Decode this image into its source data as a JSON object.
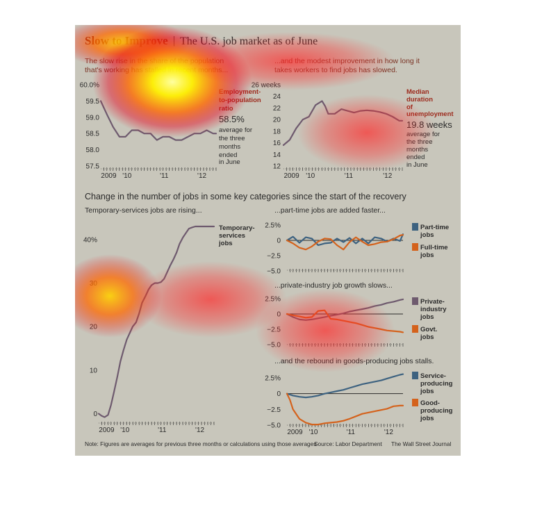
{
  "header": {
    "title_bold": "Slow to Improve",
    "separator": "|",
    "title_rest": "The U.S. job market as of June"
  },
  "panels_top": {
    "left_subtitle": [
      "The slow rise in the share of the population",
      "that's working has stalled in recent months..."
    ],
    "right_subtitle": [
      "...and the modest improvement in how long it",
      "takes workers to find jobs has slowed."
    ]
  },
  "section_title": "Change in the number of jobs in some key categories since the start of the recovery",
  "panels_bottom": {
    "left_subtitle": "Temporary-services jobs are rising...",
    "r1_subtitle": "...part-time jobs are added faster...",
    "r2_subtitle": "...private-industry job growth slows...",
    "r3_subtitle": "...and the rebound in goods-producing jobs stalls."
  },
  "footer": {
    "note": "Note: Figures are averages for previous three months or calculations using those averages",
    "source": "Source: Labor Department",
    "credit": "The Wall Street Journal"
  },
  "colors": {
    "background": "#c8c6bb",
    "purple": "#6e5a6e",
    "blue": "#3d6280",
    "orange": "#d4621c",
    "dark_red_text": "#9c2a1c",
    "text": "#2a2a2a"
  },
  "chart_data": [
    {
      "id": "emp",
      "type": "line",
      "title": "Employment-to-population ratio",
      "ylim": [
        57.5,
        60.0
      ],
      "yticks": [
        57.5,
        58.0,
        58.5,
        59.0,
        59.5,
        60.0
      ],
      "ytick_labels": [
        "57.5",
        "58.0",
        "58.5",
        "59.0",
        "59.5",
        "60.0%"
      ],
      "xlim": [
        2009.42,
        2012.5
      ],
      "xtick_labels": [
        "2009",
        "'10",
        "'11",
        "'12"
      ],
      "xtick_values": [
        2009.5,
        2010.0,
        2011.0,
        2012.0
      ],
      "series": [
        {
          "name": "Employment-to-population ratio",
          "color": "#6e5a6e",
          "x": [
            2009.42,
            2009.58,
            2009.75,
            2009.92,
            2010.08,
            2010.25,
            2010.42,
            2010.58,
            2010.75,
            2010.92,
            2011.08,
            2011.25,
            2011.42,
            2011.58,
            2011.75,
            2011.92,
            2012.08,
            2012.25,
            2012.42,
            2012.5
          ],
          "y": [
            59.5,
            59.1,
            58.7,
            58.4,
            58.4,
            58.6,
            58.6,
            58.5,
            58.5,
            58.3,
            58.4,
            58.4,
            58.3,
            58.3,
            58.4,
            58.5,
            58.5,
            58.6,
            58.5,
            58.5
          ]
        }
      ],
      "callout": {
        "label": "Employment-to-population ratio",
        "value": "58.5%",
        "desc": [
          "average for",
          "the three",
          "months",
          "ended",
          "in June"
        ]
      }
    },
    {
      "id": "dur",
      "type": "line",
      "title": "Median duration of unemployment",
      "ylim": [
        12,
        26
      ],
      "yticks": [
        12,
        14,
        16,
        18,
        20,
        22,
        24,
        26
      ],
      "ytick_labels": [
        "12",
        "14",
        "16",
        "18",
        "20",
        "22",
        "24",
        "26 weeks"
      ],
      "xlim": [
        2009.42,
        2012.5
      ],
      "xtick_labels": [
        "2009",
        "'10",
        "'11",
        "'12"
      ],
      "xtick_values": [
        2009.5,
        2010.0,
        2011.0,
        2012.0
      ],
      "series": [
        {
          "name": "Median duration of unemployment",
          "color": "#6e5a6e",
          "x": [
            2009.42,
            2009.58,
            2009.75,
            2009.92,
            2010.08,
            2010.25,
            2010.42,
            2010.5,
            2010.58,
            2010.75,
            2010.92,
            2011.08,
            2011.25,
            2011.42,
            2011.58,
            2011.75,
            2011.92,
            2012.08,
            2012.25,
            2012.42,
            2012.5
          ],
          "y": [
            15.6,
            16.5,
            18.5,
            20.0,
            20.5,
            22.5,
            23.2,
            22.3,
            21.0,
            21.0,
            21.8,
            21.5,
            21.2,
            21.5,
            21.6,
            21.5,
            21.3,
            21.0,
            20.5,
            19.8,
            19.8
          ]
        }
      ],
      "callout": {
        "label": "Median duration of unemployment",
        "value": "19.8 weeks",
        "desc": [
          "average for",
          "the three",
          "months",
          "ended",
          "in June"
        ]
      }
    },
    {
      "id": "temp",
      "type": "line",
      "title": "Temporary-services jobs",
      "ylim": [
        -2,
        43
      ],
      "yticks": [
        0,
        10,
        20,
        30,
        40
      ],
      "ytick_labels": [
        "0",
        "10",
        "20",
        "30",
        "40%"
      ],
      "xlim": [
        2009.42,
        2012.5
      ],
      "xtick_labels": [
        "2009",
        "'10",
        "'11",
        "'12"
      ],
      "xtick_values": [
        2009.5,
        2010.0,
        2011.0,
        2012.0
      ],
      "series": [
        {
          "name": "Temporary-services jobs",
          "color": "#6e5a6e",
          "x": [
            2009.42,
            2009.5,
            2009.58,
            2009.67,
            2009.75,
            2009.83,
            2009.92,
            2010.0,
            2010.08,
            2010.17,
            2010.25,
            2010.33,
            2010.42,
            2010.5,
            2010.58,
            2010.67,
            2010.75,
            2010.83,
            2010.92,
            2011.0,
            2011.08,
            2011.17,
            2011.25,
            2011.33,
            2011.42,
            2011.5,
            2011.58,
            2011.67,
            2011.75,
            2011.83,
            2011.92,
            2012.0,
            2012.08,
            2012.17,
            2012.25,
            2012.33,
            2012.42,
            2012.5
          ],
          "y": [
            0,
            -0.5,
            -0.8,
            -0.3,
            2,
            5,
            8.5,
            12,
            14.5,
            17,
            18.5,
            20,
            21,
            23,
            25.5,
            27,
            28.5,
            29.5,
            30,
            30,
            30.2,
            31,
            32.5,
            34,
            35.5,
            37,
            39,
            40.5,
            41.5,
            42.5,
            42.8,
            43,
            43,
            43,
            43,
            43,
            43,
            43
          ]
        }
      ],
      "legend": [
        "Temporary-",
        "services",
        "jobs"
      ]
    },
    {
      "id": "pt",
      "type": "line",
      "title": "",
      "ylim": [
        -5.0,
        2.5
      ],
      "yticks": [
        -5.0,
        -2.5,
        0,
        2.5
      ],
      "ytick_labels": [
        "−5.0",
        "−2.5",
        "0",
        "2.5%"
      ],
      "xlim": [
        2009.42,
        2012.5
      ],
      "series": [
        {
          "name": "Part-time jobs",
          "color": "#3d6280",
          "x": [
            2009.42,
            2009.58,
            2009.75,
            2009.92,
            2010.08,
            2010.25,
            2010.42,
            2010.58,
            2010.75,
            2010.92,
            2011.08,
            2011.25,
            2011.42,
            2011.58,
            2011.75,
            2011.92,
            2012.08,
            2012.25,
            2012.42,
            2012.5
          ],
          "y": [
            0,
            0.6,
            -0.4,
            0.5,
            0.3,
            -0.8,
            -0.5,
            -0.4,
            0.3,
            -0.3,
            0.4,
            -0.5,
            0.3,
            -0.5,
            0.5,
            0.3,
            -0.2,
            0.3,
            -0.1,
            1.0
          ]
        },
        {
          "name": "Full-time jobs",
          "color": "#d4621c",
          "x": [
            2009.42,
            2009.58,
            2009.75,
            2009.92,
            2010.08,
            2010.25,
            2010.42,
            2010.58,
            2010.75,
            2010.92,
            2011.08,
            2011.25,
            2011.42,
            2011.58,
            2011.75,
            2011.92,
            2012.08,
            2012.25,
            2012.42,
            2012.5
          ],
          "y": [
            0,
            -0.5,
            -1.2,
            -1.5,
            -1.0,
            -0.2,
            0.3,
            0.2,
            -0.8,
            -1.5,
            -0.3,
            0.5,
            -0.2,
            -0.8,
            -0.6,
            -0.3,
            -0.2,
            0.2,
            0.8,
            0.9
          ]
        }
      ],
      "legend": [
        [
          "Part-time",
          "jobs"
        ],
        [
          "Full-time",
          "jobs"
        ]
      ]
    },
    {
      "id": "priv",
      "type": "line",
      "title": "",
      "ylim": [
        -5.0,
        2.5
      ],
      "yticks": [
        -5.0,
        -2.5,
        0,
        2.5
      ],
      "ytick_labels": [
        "−5.0",
        "−2.5",
        "0",
        "2.5%"
      ],
      "xlim": [
        2009.42,
        2012.5
      ],
      "series": [
        {
          "name": "Private-industry jobs",
          "color": "#6e5a6e",
          "x": [
            2009.42,
            2009.58,
            2009.75,
            2009.92,
            2010.08,
            2010.25,
            2010.42,
            2010.58,
            2010.75,
            2010.92,
            2011.08,
            2011.25,
            2011.42,
            2011.58,
            2011.75,
            2011.92,
            2012.08,
            2012.25,
            2012.42,
            2012.5
          ],
          "y": [
            0,
            -0.5,
            -0.9,
            -1.0,
            -0.9,
            -0.7,
            -0.5,
            -0.3,
            -0.1,
            0.1,
            0.4,
            0.6,
            0.8,
            1.0,
            1.3,
            1.5,
            1.8,
            2.0,
            2.3,
            2.4
          ]
        },
        {
          "name": "Govt. jobs",
          "color": "#d4621c",
          "x": [
            2009.42,
            2009.58,
            2009.75,
            2009.92,
            2010.08,
            2010.25,
            2010.42,
            2010.58,
            2010.75,
            2010.92,
            2011.08,
            2011.25,
            2011.42,
            2011.58,
            2011.75,
            2011.92,
            2012.08,
            2012.25,
            2012.42,
            2012.5
          ],
          "y": [
            0,
            -0.2,
            -0.4,
            -0.6,
            -0.5,
            0.5,
            0.6,
            -0.8,
            -0.9,
            -1.1,
            -1.3,
            -1.5,
            -1.8,
            -2.1,
            -2.3,
            -2.5,
            -2.7,
            -2.8,
            -2.9,
            -3.0
          ]
        }
      ],
      "legend": [
        [
          "Private-",
          "industry",
          "jobs"
        ],
        [
          "Govt.",
          "jobs"
        ]
      ]
    },
    {
      "id": "goods",
      "type": "line",
      "title": "",
      "ylim": [
        -5.0,
        2.5
      ],
      "yticks": [
        -5.0,
        -2.5,
        0,
        2.5
      ],
      "ytick_labels": [
        "−5.0",
        "−2.5",
        "0",
        "2.5%"
      ],
      "xlim": [
        2009.42,
        2012.5
      ],
      "xtick_labels": [
        "2009",
        "'10",
        "'11",
        "'12"
      ],
      "xtick_values": [
        2009.5,
        2010.0,
        2011.0,
        2012.0
      ],
      "series": [
        {
          "name": "Service-producing jobs",
          "color": "#3d6280",
          "x": [
            2009.42,
            2009.58,
            2009.75,
            2009.92,
            2010.08,
            2010.25,
            2010.42,
            2010.58,
            2010.75,
            2010.92,
            2011.08,
            2011.25,
            2011.42,
            2011.58,
            2011.75,
            2011.92,
            2012.08,
            2012.25,
            2012.42,
            2012.5
          ],
          "y": [
            0,
            -0.3,
            -0.5,
            -0.6,
            -0.5,
            -0.3,
            0,
            0.2,
            0.4,
            0.6,
            0.9,
            1.2,
            1.5,
            1.7,
            1.9,
            2.1,
            2.4,
            2.7,
            3.0,
            3.1
          ]
        },
        {
          "name": "Good-producing jobs",
          "color": "#d4621c",
          "x": [
            2009.42,
            2009.5,
            2009.58,
            2009.75,
            2009.92,
            2010.08,
            2010.25,
            2010.42,
            2010.58,
            2010.75,
            2010.92,
            2011.08,
            2011.25,
            2011.42,
            2011.58,
            2011.75,
            2011.92,
            2012.08,
            2012.25,
            2012.42,
            2012.5
          ],
          "y": [
            0,
            -1.0,
            -2.5,
            -4.0,
            -4.6,
            -4.9,
            -4.9,
            -4.7,
            -4.6,
            -4.5,
            -4.3,
            -4.0,
            -3.6,
            -3.2,
            -3.0,
            -2.8,
            -2.6,
            -2.4,
            -2.0,
            -1.9,
            -1.9
          ]
        }
      ],
      "legend": [
        [
          "Service-",
          "producing",
          "jobs"
        ],
        [
          "Good-",
          "producing",
          "jobs"
        ]
      ]
    }
  ]
}
